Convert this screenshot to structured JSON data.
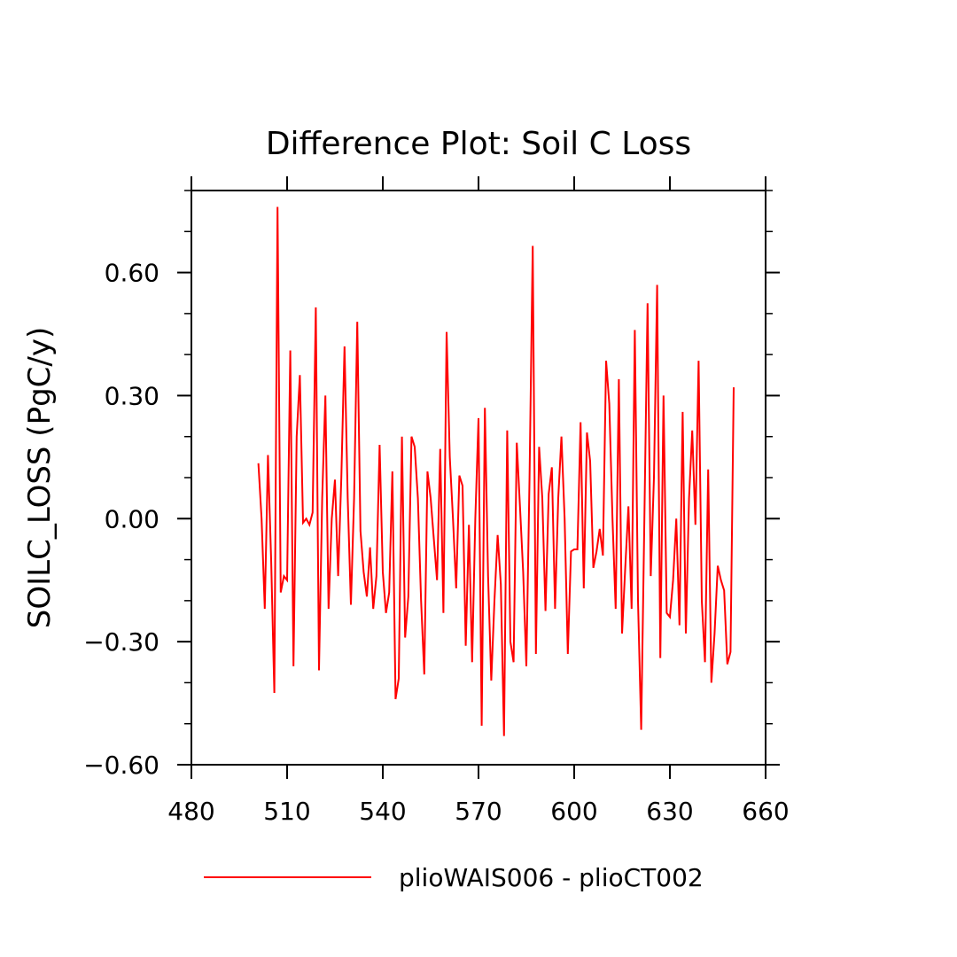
{
  "chart_data": {
    "type": "line",
    "title": "Difference Plot: Soil C Loss",
    "xlabel": "",
    "ylabel": "SOILC_LOSS  (PgC/y)",
    "xlim": [
      480,
      660
    ],
    "ylim": [
      -0.6,
      0.8
    ],
    "xticks": [
      480,
      510,
      540,
      570,
      600,
      630,
      660
    ],
    "xtick_labels": [
      "480",
      "510",
      "540",
      "570",
      "600",
      "630",
      "660"
    ],
    "yticks": [
      -0.6,
      -0.3,
      0.0,
      0.3,
      0.6
    ],
    "ytick_labels": [
      "−0.60",
      "−0.30",
      "0.00",
      "0.30",
      "0.60"
    ],
    "grid": false,
    "legend_position": "bottom",
    "series": [
      {
        "name": "plioWAIS006 - plioCT002",
        "color": "#ff0000",
        "x": [
          501,
          502,
          503,
          504,
          505,
          506,
          507,
          508,
          509,
          510,
          511,
          512,
          513,
          514,
          515,
          516,
          517,
          518,
          519,
          520,
          521,
          522,
          523,
          524,
          525,
          526,
          527,
          528,
          529,
          530,
          531,
          532,
          533,
          534,
          535,
          536,
          537,
          538,
          539,
          540,
          541,
          542,
          543,
          544,
          545,
          546,
          547,
          548,
          549,
          550,
          551,
          552,
          553,
          554,
          555,
          556,
          557,
          558,
          559,
          560,
          561,
          562,
          563,
          564,
          565,
          566,
          567,
          568,
          569,
          570,
          571,
          572,
          573,
          574,
          575,
          576,
          577,
          578,
          579,
          580,
          581,
          582,
          583,
          584,
          585,
          586,
          587,
          588,
          589,
          590,
          591,
          592,
          593,
          594,
          595,
          596,
          597,
          598,
          599,
          600,
          601,
          602,
          603,
          604,
          605,
          606,
          607,
          608,
          609,
          610,
          611,
          612,
          613,
          614,
          615,
          616,
          617,
          618,
          619,
          620,
          621,
          622,
          623,
          624,
          625,
          626,
          627,
          628,
          629,
          630,
          631,
          632,
          633,
          634,
          635,
          636,
          637,
          638,
          639,
          640,
          641,
          642,
          643,
          644,
          645,
          646,
          647,
          648,
          649,
          650
        ],
        "y": [
          0.135,
          0.0,
          -0.22,
          0.155,
          -0.1,
          -0.425,
          0.76,
          -0.18,
          -0.14,
          -0.15,
          0.41,
          -0.36,
          0.2,
          0.35,
          -0.01,
          0.0,
          -0.015,
          0.015,
          0.515,
          -0.37,
          0.05,
          0.3,
          -0.22,
          0.0,
          0.095,
          -0.14,
          0.1,
          0.42,
          0.05,
          -0.21,
          0.05,
          0.48,
          -0.03,
          -0.13,
          -0.19,
          -0.07,
          -0.22,
          -0.14,
          0.18,
          -0.13,
          -0.23,
          -0.18,
          0.115,
          -0.44,
          -0.39,
          0.2,
          -0.29,
          -0.19,
          0.2,
          0.175,
          0.05,
          -0.2,
          -0.38,
          0.115,
          0.05,
          -0.05,
          -0.15,
          0.17,
          -0.23,
          0.455,
          0.15,
          0.0,
          -0.17,
          0.105,
          0.08,
          -0.31,
          -0.015,
          -0.35,
          0.0,
          0.245,
          -0.505,
          0.27,
          -0.14,
          -0.395,
          -0.2,
          -0.04,
          -0.16,
          -0.53,
          0.215,
          -0.3,
          -0.35,
          0.185,
          0.03,
          -0.13,
          -0.36,
          0.1,
          0.665,
          -0.33,
          0.175,
          0.05,
          -0.225,
          0.06,
          0.125,
          -0.22,
          0.05,
          0.2,
          0.0,
          -0.33,
          -0.08,
          -0.075,
          -0.075,
          0.235,
          -0.17,
          0.21,
          0.14,
          -0.12,
          -0.08,
          -0.025,
          -0.09,
          0.385,
          0.28,
          0.0,
          -0.22,
          0.34,
          -0.28,
          -0.12,
          0.03,
          -0.22,
          0.46,
          -0.2,
          -0.515,
          0.0,
          0.525,
          -0.14,
          0.1,
          0.57,
          -0.34,
          0.3,
          -0.23,
          -0.24,
          -0.15,
          0.0,
          -0.26,
          0.26,
          -0.28,
          0.05,
          0.215,
          -0.015,
          0.385,
          -0.2,
          -0.35,
          0.12,
          -0.4,
          -0.28,
          -0.115,
          -0.15,
          -0.175,
          -0.355,
          -0.325,
          0.32
        ]
      }
    ]
  }
}
